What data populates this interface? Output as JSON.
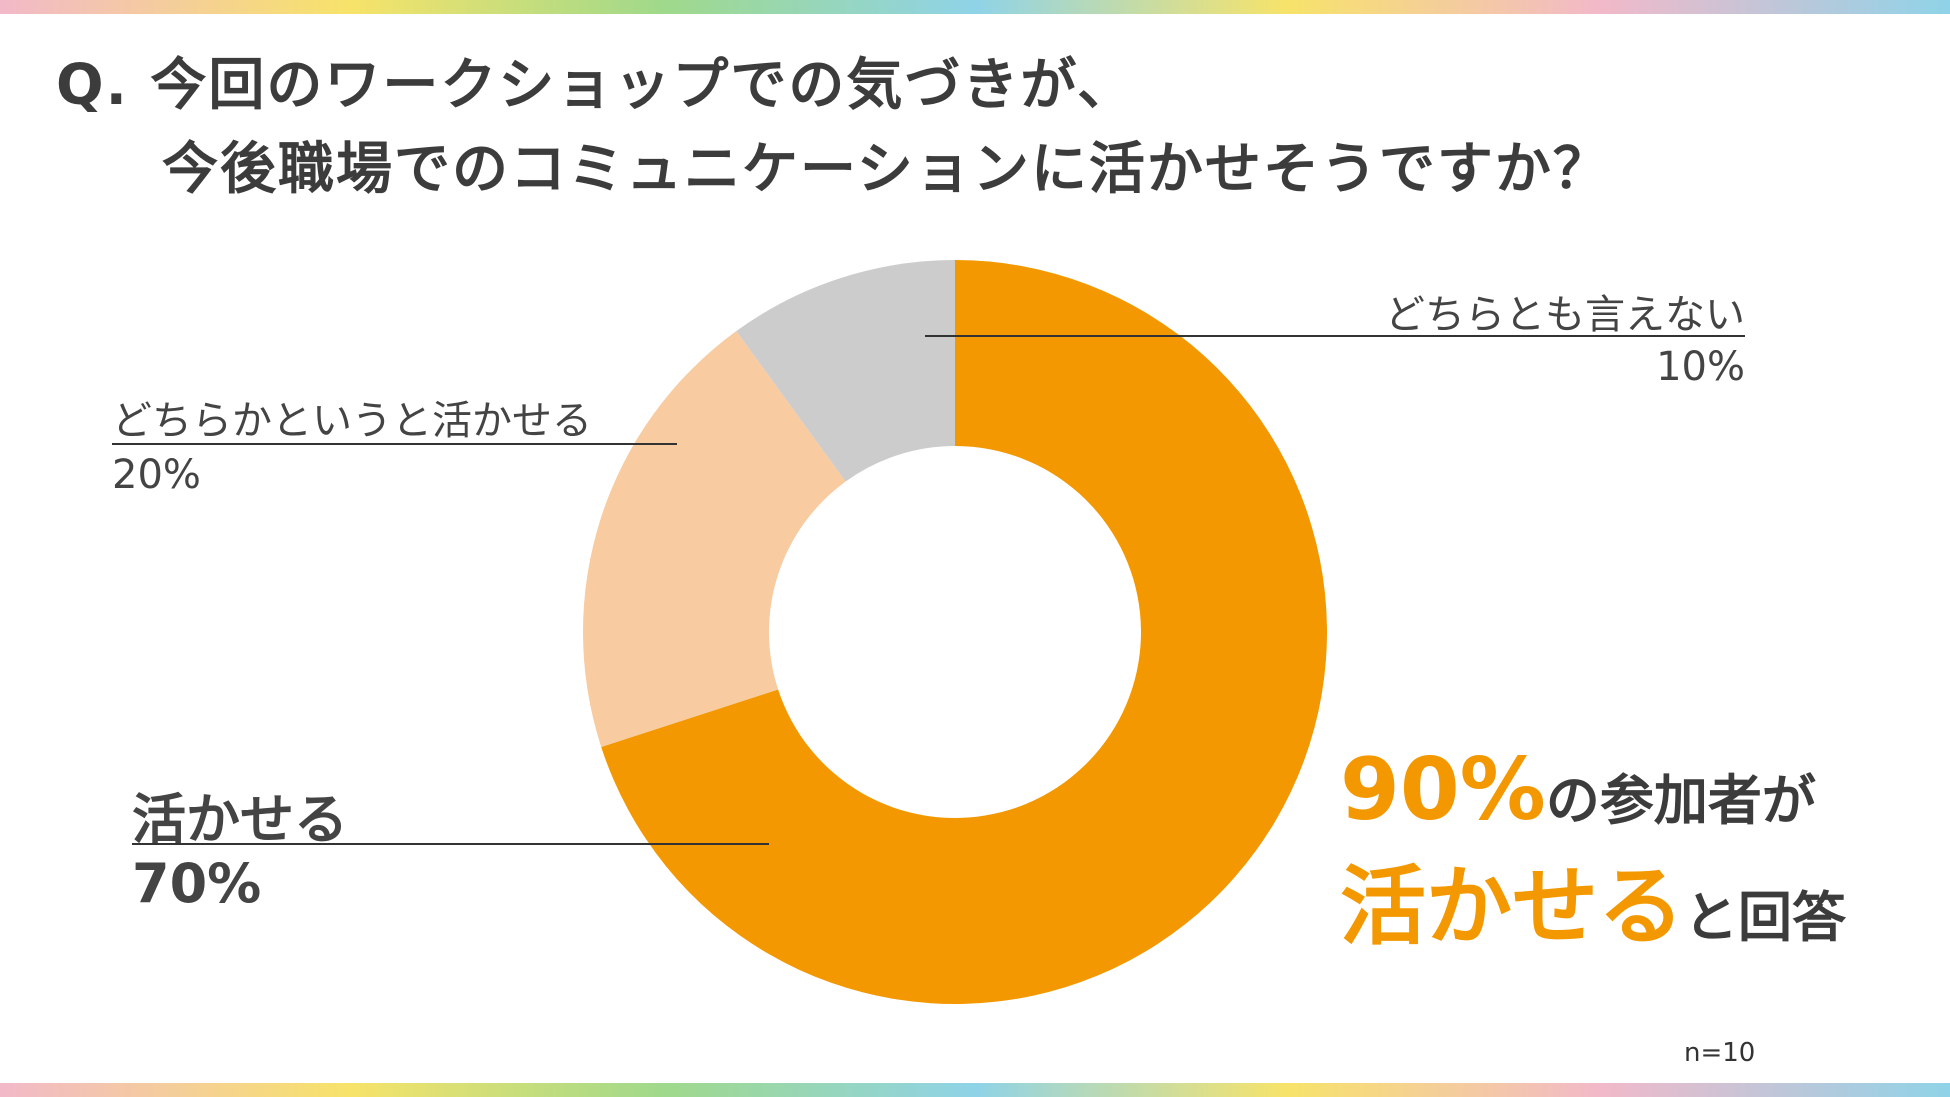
{
  "question": {
    "line1": "Q. 今回のワークショップでの気づきが、",
    "line2": "今後職場でのコミュニケーションに活かせそうですか？"
  },
  "chart_data": {
    "type": "pie",
    "donut": true,
    "slices": [
      {
        "label": "活かせる",
        "value": 70,
        "value_text": "70%",
        "color": "#f39800"
      },
      {
        "label": "どちらかというと活かせる",
        "value": 20,
        "value_text": "20%",
        "color": "#f8cba0"
      },
      {
        "label": "どちらとも言えない",
        "value": 10,
        "value_text": "10%",
        "color": "#cccccc"
      }
    ]
  },
  "callout": {
    "pct": "90%",
    "text1": "の参加者が",
    "highlight": "活かせる",
    "text2": "と回答"
  },
  "sample_size": "n=10"
}
